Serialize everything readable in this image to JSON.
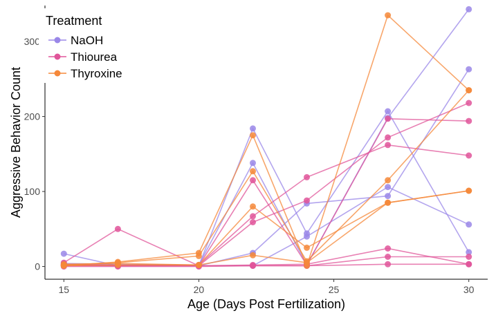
{
  "chart_data": {
    "type": "line",
    "xlabel": "Age (Days Post Fertilization)",
    "ylabel": "Aggressive Behavior Count",
    "xlim": [
      14.3,
      30.7
    ],
    "ylim": [
      -17,
      348
    ],
    "xticks": [
      15,
      20,
      25,
      30
    ],
    "yticks": [
      0,
      100,
      200,
      300
    ],
    "xtick_labels": [
      "15",
      "20",
      "25",
      "30"
    ],
    "ytick_labels": [
      "0",
      "100",
      "200",
      "300"
    ],
    "grid": false,
    "legend": {
      "title": "Treatment",
      "position": "top-left"
    },
    "colors": {
      "NaOH": "#9A87E8",
      "Thiourea": "#E0559A",
      "Thyroxine": "#F5883A"
    },
    "series": [
      {
        "name": "NaOH",
        "group": "NaOH",
        "x": [
          15,
          17,
          20,
          22,
          24,
          27,
          30
        ],
        "y": [
          17,
          1,
          1,
          184,
          44,
          207,
          19
        ]
      },
      {
        "name": "NaOH",
        "group": "NaOH",
        "x": [
          15,
          17,
          20,
          22,
          24,
          27,
          30
        ],
        "y": [
          4,
          3,
          2,
          138,
          2,
          198,
          343
        ]
      },
      {
        "name": "NaOH",
        "group": "NaOH",
        "x": [
          15,
          17,
          20,
          22,
          24,
          27,
          30
        ],
        "y": [
          2,
          2,
          1,
          18,
          84,
          94,
          263
        ]
      },
      {
        "name": "NaOH",
        "group": "NaOH",
        "x": [
          15,
          17,
          20,
          22,
          24,
          27,
          30
        ],
        "y": [
          1,
          1,
          1,
          1,
          40,
          106,
          56
        ]
      },
      {
        "name": "Thiourea",
        "group": "Thiourea",
        "x": [
          15,
          17,
          20,
          22,
          24,
          27,
          30
        ],
        "y": [
          5,
          50,
          1,
          115,
          2,
          197,
          194
        ]
      },
      {
        "name": "Thiourea",
        "group": "Thiourea",
        "x": [
          15,
          17,
          20,
          22,
          24,
          27,
          30
        ],
        "y": [
          3,
          2,
          2,
          67,
          119,
          162,
          148
        ]
      },
      {
        "name": "Thiourea",
        "group": "Thiourea",
        "x": [
          15,
          17,
          20,
          22,
          24,
          27,
          30
        ],
        "y": [
          2,
          1,
          1,
          59,
          88,
          172,
          218
        ]
      },
      {
        "name": "Thiourea",
        "group": "Thiourea",
        "x": [
          15,
          17,
          20,
          22,
          24,
          27,
          30
        ],
        "y": [
          1,
          1,
          1,
          2,
          3,
          24,
          3
        ]
      },
      {
        "name": "Thiourea",
        "group": "Thiourea",
        "x": [
          15,
          17,
          20,
          22,
          24,
          27,
          30
        ],
        "y": [
          0,
          0,
          0,
          1,
          1,
          13,
          13
        ]
      },
      {
        "name": "Thiourea",
        "group": "Thiourea",
        "x": [
          15,
          17,
          20,
          22,
          24,
          27,
          30
        ],
        "y": [
          2,
          1,
          1,
          1,
          1,
          3,
          3
        ]
      },
      {
        "name": "Thyroxine",
        "group": "Thyroxine",
        "x": [
          15,
          17,
          20,
          22,
          24,
          27,
          30
        ],
        "y": [
          1,
          6,
          18,
          175,
          1,
          335,
          235
        ]
      },
      {
        "name": "Thyroxine",
        "group": "Thyroxine",
        "x": [
          15,
          17,
          20,
          22,
          24,
          27,
          30
        ],
        "y": [
          2,
          5,
          14,
          127,
          7,
          115,
          235
        ]
      },
      {
        "name": "Thyroxine",
        "group": "Thyroxine",
        "x": [
          15,
          17,
          20,
          22,
          24,
          27,
          30
        ],
        "y": [
          3,
          4,
          2,
          80,
          25,
          85,
          101
        ]
      },
      {
        "name": "Thyroxine",
        "group": "Thyroxine",
        "x": [
          15,
          17,
          20,
          22,
          24,
          27,
          30
        ],
        "y": [
          1,
          2,
          2,
          15,
          5,
          85,
          101
        ]
      }
    ]
  }
}
